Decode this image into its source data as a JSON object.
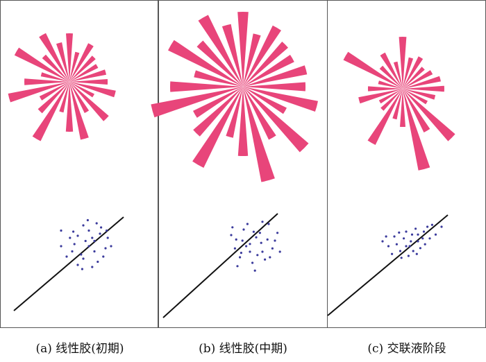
{
  "figure": {
    "captions": [
      "(a) 线性胶(初期)",
      "(b) 线性胶(中期)",
      "(c) 交联液阶段"
    ]
  },
  "colors": {
    "rose": "#e8457a",
    "points": "#3b3b9c",
    "line": "#111111",
    "frame": "#555555"
  },
  "panels": [
    {
      "name": "early-linear-gel",
      "rose_lengths": [
        55,
        68,
        40,
        75,
        50,
        85,
        72,
        45,
        95,
        60,
        48,
        90,
        65,
        42,
        88,
        52,
        78,
        58,
        70,
        44,
        62,
        50,
        46,
        54
      ],
      "scatter_points": [
        [
          0.3,
          0.35
        ],
        [
          0.45,
          0.4
        ],
        [
          0.5,
          0.3
        ],
        [
          0.55,
          0.5
        ],
        [
          0.6,
          0.45
        ],
        [
          0.4,
          0.55
        ],
        [
          0.65,
          0.38
        ],
        [
          0.7,
          0.52
        ],
        [
          0.35,
          0.6
        ],
        [
          0.5,
          0.62
        ],
        [
          0.58,
          0.7
        ],
        [
          0.62,
          0.28
        ],
        [
          0.72,
          0.42
        ],
        [
          0.42,
          0.48
        ],
        [
          0.48,
          0.58
        ],
        [
          0.55,
          0.35
        ],
        [
          0.68,
          0.6
        ],
        [
          0.38,
          0.42
        ],
        [
          0.52,
          0.45
        ],
        [
          0.6,
          0.55
        ],
        [
          0.45,
          0.68
        ],
        [
          0.75,
          0.5
        ],
        [
          0.3,
          0.5
        ],
        [
          0.66,
          0.32
        ],
        [
          0.54,
          0.25
        ],
        [
          0.49,
          0.72
        ],
        [
          0.58,
          0.42
        ],
        [
          0.41,
          0.36
        ],
        [
          0.63,
          0.65
        ],
        [
          0.71,
          0.35
        ]
      ]
    },
    {
      "name": "middle-linear-gel",
      "rose_lengths": [
        90,
        110,
        70,
        125,
        85,
        140,
        100,
        75,
        130,
        95,
        80,
        135,
        105,
        72,
        120,
        88,
        115,
        92,
        108,
        78,
        98,
        86,
        82,
        94
      ],
      "scatter_points": [
        [
          0.35,
          0.4
        ],
        [
          0.45,
          0.35
        ],
        [
          0.5,
          0.48
        ],
        [
          0.55,
          0.42
        ],
        [
          0.6,
          0.55
        ],
        [
          0.42,
          0.6
        ],
        [
          0.65,
          0.3
        ],
        [
          0.7,
          0.45
        ],
        [
          0.38,
          0.52
        ],
        [
          0.52,
          0.65
        ],
        [
          0.58,
          0.38
        ],
        [
          0.62,
          0.62
        ],
        [
          0.48,
          0.3
        ],
        [
          0.68,
          0.52
        ],
        [
          0.44,
          0.45
        ],
        [
          0.56,
          0.58
        ],
        [
          0.4,
          0.68
        ],
        [
          0.64,
          0.44
        ],
        [
          0.5,
          0.55
        ],
        [
          0.72,
          0.38
        ],
        [
          0.36,
          0.33
        ],
        [
          0.54,
          0.72
        ],
        [
          0.6,
          0.28
        ],
        [
          0.47,
          0.5
        ],
        [
          0.66,
          0.6
        ],
        [
          0.43,
          0.56
        ],
        [
          0.59,
          0.47
        ],
        [
          0.74,
          0.55
        ],
        [
          0.39,
          0.44
        ],
        [
          0.53,
          0.37
        ]
      ]
    },
    {
      "name": "crosslink-liquid-stage",
      "rose_lengths": [
        60,
        48,
        40,
        100,
        70,
        120,
        55,
        45,
        90,
        42,
        38,
        65,
        50,
        36,
        95,
        44,
        58,
        40,
        75,
        46,
        52,
        42,
        48,
        56
      ],
      "scatter_points": [
        [
          0.3,
          0.45
        ],
        [
          0.4,
          0.4
        ],
        [
          0.5,
          0.5
        ],
        [
          0.55,
          0.38
        ],
        [
          0.6,
          0.45
        ],
        [
          0.45,
          0.55
        ],
        [
          0.65,
          0.35
        ],
        [
          0.7,
          0.42
        ],
        [
          0.35,
          0.5
        ],
        [
          0.52,
          0.6
        ],
        [
          0.58,
          0.32
        ],
        [
          0.62,
          0.52
        ],
        [
          0.48,
          0.42
        ],
        [
          0.68,
          0.3
        ],
        [
          0.42,
          0.48
        ],
        [
          0.56,
          0.55
        ],
        [
          0.75,
          0.38
        ],
        [
          0.64,
          0.42
        ],
        [
          0.5,
          0.35
        ],
        [
          0.72,
          0.28
        ],
        [
          0.38,
          0.58
        ],
        [
          0.54,
          0.45
        ],
        [
          0.6,
          0.38
        ],
        [
          0.46,
          0.62
        ],
        [
          0.66,
          0.48
        ],
        [
          0.44,
          0.36
        ],
        [
          0.59,
          0.58
        ],
        [
          0.8,
          0.3
        ],
        [
          0.33,
          0.4
        ],
        [
          0.53,
          0.5
        ]
      ]
    }
  ]
}
